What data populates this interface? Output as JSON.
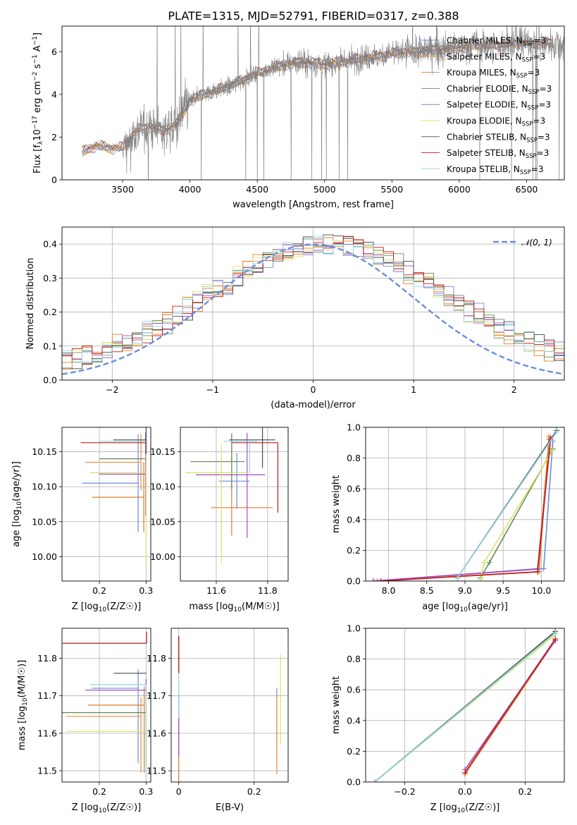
{
  "figure": {
    "title": "PLATE=1315, MJD=52791, FIBERID=0317, z=0.388"
  },
  "colors": {
    "series": [
      "#6a8fdc",
      "#f08a3c",
      "#e07b2a",
      "#5f8d5a",
      "#a64bc2",
      "#d8e36a",
      "#4a4a4a",
      "#c11b1b",
      "#8fd6e0"
    ],
    "data": "#808080",
    "normal": "#6a8fdc",
    "grid": "#b0b0b0"
  },
  "chart_data": [
    {
      "id": "spectrum",
      "type": "line",
      "xlabel": "wavelength [Angstrom, rest frame]",
      "ylabel": "Flux [f_λ 10^-17 erg cm^-2 s^-1 A^-1]",
      "xlim": [
        3050,
        6780
      ],
      "ylim": [
        0,
        7.2
      ],
      "xticks": [
        3500,
        4000,
        4500,
        5000,
        5500,
        6000,
        6500
      ],
      "yticks": [
        0,
        2,
        4,
        6
      ],
      "legend_position": "upper right",
      "legend": [
        "Chabrier MILES, N_SSP=3",
        "Salpeter MILES, N_SSP=3",
        "Kroupa MILES, N_SSP=3",
        "Chabrier ELODIE, N_SSP=3",
        "Salpeter ELODIE, N_SSP=3",
        "Kroupa ELODIE, N_SSP=3",
        "Chabrier STELIB, N_SSP=3",
        "Salpeter STELIB, N_SSP=3",
        "Kroupa STELIB, N_SSP=3"
      ],
      "continuum": {
        "x": [
          3200,
          3300,
          3400,
          3500,
          3600,
          3700,
          3800,
          3900,
          4000,
          4100,
          4200,
          4300,
          4400,
          4500,
          4600,
          4700,
          4800,
          4900,
          5000,
          5100,
          5200,
          5300,
          5400,
          5500,
          5600,
          5700,
          5800,
          5900,
          6000,
          6100,
          6200,
          6300,
          6400,
          6500,
          6600
        ],
        "y": [
          1.3,
          1.6,
          1.5,
          1.5,
          2.3,
          2.5,
          2.3,
          2.6,
          3.7,
          4.0,
          4.2,
          4.4,
          4.7,
          5.0,
          5.2,
          5.4,
          5.5,
          5.5,
          5.4,
          5.5,
          5.6,
          5.7,
          5.8,
          5.9,
          6.0,
          6.0,
          6.1,
          6.1,
          6.2,
          6.3,
          6.3,
          6.3,
          6.4,
          6.4,
          6.4
        ]
      }
    },
    {
      "id": "residuals",
      "type": "step",
      "xlabel": "(data-model)/error",
      "ylabel": "Normed distribution",
      "xlim": [
        -2.5,
        2.5
      ],
      "ylim": [
        0,
        0.45
      ],
      "xticks": [
        -2,
        -1,
        0,
        1,
        2
      ],
      "yticks": [
        0.0,
        0.1,
        0.2,
        0.3,
        0.4
      ],
      "legend": [
        "𝒩(0, 1)"
      ],
      "legend_position": "upper right",
      "bin_width": 0.1
    },
    {
      "id": "age-vs-Z",
      "type": "errorbar",
      "xlabel": "Z [log10(Z/Z☉)]",
      "ylabel": "age  [log10(age/yr)]",
      "xlim": [
        0.12,
        0.31
      ],
      "ylim": [
        9.965,
        10.185
      ],
      "xticks": [
        0.2,
        0.3
      ],
      "yticks": [
        10.0,
        10.05,
        10.1,
        10.15
      ],
      "points": [
        {
          "x": 0.283,
          "y": 10.105,
          "xerr": [
            0.12,
            0
          ],
          "yerr": [
            0.07,
            0.07
          ]
        },
        {
          "x": 0.289,
          "y": 10.135,
          "xerr": [
            0.12,
            0
          ],
          "yerr": [
            0.04,
            0.04
          ]
        },
        {
          "x": 0.295,
          "y": 10.085,
          "xerr": [
            0.11,
            0
          ],
          "yerr": [
            0.05,
            0.05
          ]
        },
        {
          "x": 0.3,
          "y": 10.14,
          "xerr": [
            0.1,
            0
          ],
          "yerr": [
            0.03,
            0.03
          ]
        },
        {
          "x": 0.299,
          "y": 10.118,
          "xerr": [
            0.1,
            0
          ],
          "yerr": [
            0.06,
            0.06
          ]
        },
        {
          "x": 0.3,
          "y": 10.12,
          "xerr": [
            0.12,
            0
          ],
          "yerr": [
            0.13,
            0.05
          ]
        },
        {
          "x": 0.3,
          "y": 10.167,
          "xerr": [
            0.07,
            0
          ],
          "yerr": [
            0.02,
            0.02
          ]
        },
        {
          "x": 0.3,
          "y": 10.163,
          "xerr": [
            0.14,
            0
          ],
          "yerr": [
            0.0,
            0.0
          ]
        },
        {
          "x": 0.299,
          "y": 10.165,
          "xerr": [
            0.1,
            0
          ],
          "yerr": [
            0.0,
            0.0
          ]
        }
      ]
    },
    {
      "id": "age-vs-mass",
      "type": "errorbar",
      "xlabel": "mass [log10(M/M☉)]",
      "ylabel": "",
      "xlim": [
        11.46,
        11.88
      ],
      "ylim": [
        9.965,
        10.185
      ],
      "xticks": [
        11.6,
        11.8
      ],
      "yticks": [
        10.0,
        10.05,
        10.1,
        10.15
      ],
      "points": [
        {
          "x": 11.68,
          "y": 10.108,
          "xerr": [
            0.07,
            0.05
          ],
          "yerr": [
            0.04,
            0.04
          ]
        },
        {
          "x": 11.66,
          "y": 10.136,
          "xerr": [
            0.16,
            0.05
          ],
          "yerr": [
            0.04,
            0.04
          ]
        },
        {
          "x": 11.66,
          "y": 10.07,
          "xerr": [
            0.08,
            0.16
          ],
          "yerr": [
            0.04,
            0.04
          ]
        },
        {
          "x": 11.66,
          "y": 10.136,
          "xerr": [
            0.16,
            0.05
          ],
          "yerr": [
            0.04,
            0.04
          ]
        },
        {
          "x": 11.72,
          "y": 10.117,
          "xerr": [
            0.2,
            0.07
          ],
          "yerr": [
            0.09,
            0.06
          ]
        },
        {
          "x": 11.62,
          "y": 10.12,
          "xerr": [
            0.14,
            0.1
          ],
          "yerr": [
            0.13,
            0.04
          ]
        },
        {
          "x": 11.78,
          "y": 10.167,
          "xerr": [
            0.13,
            0.05
          ],
          "yerr": [
            0.04,
            0.02
          ]
        },
        {
          "x": 11.84,
          "y": 10.163,
          "xerr": [
            0.18,
            0.0
          ],
          "yerr": [
            0.1,
            0.0
          ]
        },
        {
          "x": 11.73,
          "y": 10.165,
          "xerr": [
            0.1,
            0.03
          ],
          "yerr": [
            0.05,
            0.0
          ]
        }
      ]
    },
    {
      "id": "weight-vs-age",
      "type": "line",
      "xlabel": "age  [log10(age/yr)]",
      "ylabel": "mass weight",
      "xlim": [
        7.7,
        10.3
      ],
      "ylim": [
        0.0,
        1.0
      ],
      "xticks": [
        8.0,
        8.5,
        9.0,
        9.5,
        10.0
      ],
      "yticks": [
        0.0,
        0.2,
        0.4,
        0.6,
        0.8,
        1.0
      ],
      "series": [
        {
          "x": [
            7.8,
            10.03,
            10.15
          ],
          "y": [
            0.0,
            0.08,
            0.91
          ]
        },
        {
          "x": [
            7.8,
            9.95,
            10.1
          ],
          "y": [
            0.0,
            0.06,
            0.92
          ]
        },
        {
          "x": [
            7.85,
            9.97,
            10.1
          ],
          "y": [
            0.0,
            0.06,
            0.94
          ]
        },
        {
          "x": [
            9.2,
            9.32,
            10.15
          ],
          "y": [
            0.02,
            0.12,
            0.86
          ]
        },
        {
          "x": [
            7.8,
            9.95,
            10.12
          ],
          "y": [
            0.0,
            0.08,
            0.92
          ]
        },
        {
          "x": [
            9.2,
            9.25,
            10.15
          ],
          "y": [
            0.01,
            0.12,
            0.85
          ]
        },
        {
          "x": [
            8.9,
            10.2
          ],
          "y": [
            0.02,
            0.98
          ]
        },
        {
          "x": [
            7.9,
            9.95,
            10.12
          ],
          "y": [
            0.0,
            0.06,
            0.93
          ]
        },
        {
          "x": [
            8.9,
            10.2
          ],
          "y": [
            0.02,
            0.97
          ]
        }
      ]
    },
    {
      "id": "mass-vs-Z",
      "type": "errorbar",
      "xlabel": "Z [log10(Z/Z☉)]",
      "ylabel": "mass [log10(M/M☉)]",
      "xlim": [
        0.12,
        0.31
      ],
      "ylim": [
        11.47,
        11.88
      ],
      "xticks": [
        0.2,
        0.3
      ],
      "yticks": [
        11.5,
        11.6,
        11.7,
        11.8
      ],
      "points": [
        {
          "x": 0.283,
          "y": 11.72,
          "xerr": [
            0.1,
            0
          ],
          "yerr": [
            0.2,
            0.05
          ]
        },
        {
          "x": 0.289,
          "y": 11.645,
          "xerr": [
            0.16,
            0
          ],
          "yerr": [
            0.15,
            0.05
          ]
        },
        {
          "x": 0.296,
          "y": 11.675,
          "xerr": [
            0.12,
            0
          ],
          "yerr": [
            0.18,
            0.05
          ]
        },
        {
          "x": 0.3,
          "y": 11.655,
          "xerr": [
            0.18,
            0
          ],
          "yerr": [
            0.0,
            0.0
          ]
        },
        {
          "x": 0.3,
          "y": 11.715,
          "xerr": [
            0.13,
            0
          ],
          "yerr": [
            0.2,
            0.03
          ]
        },
        {
          "x": 0.3,
          "y": 11.605,
          "xerr": [
            0.17,
            0
          ],
          "yerr": [
            0.1,
            0.07
          ]
        },
        {
          "x": 0.301,
          "y": 11.76,
          "xerr": [
            0.07,
            0
          ],
          "yerr": [
            0.0,
            0.0
          ]
        },
        {
          "x": 0.301,
          "y": 11.84,
          "xerr": [
            0.18,
            0
          ],
          "yerr": [
            0.0,
            0.03
          ]
        },
        {
          "x": 0.3,
          "y": 11.73,
          "xerr": [
            0.12,
            0
          ],
          "yerr": [
            0.25,
            0.0
          ]
        }
      ]
    },
    {
      "id": "mass-vs-ebv",
      "type": "errorbar",
      "xlabel": "E(B-V)",
      "ylabel": "",
      "xlim": [
        -0.02,
        0.29
      ],
      "ylim": [
        11.47,
        11.88
      ],
      "xticks": [
        0.0,
        0.2
      ],
      "yticks": [
        11.5,
        11.6,
        11.7,
        11.8
      ],
      "points": [
        {
          "x": 0.26,
          "y": 11.66,
          "xerr": [
            0,
            0
          ],
          "yerr": [
            0.14,
            0.06
          ]
        },
        {
          "x": 0.26,
          "y": 11.56,
          "xerr": [
            0,
            0
          ],
          "yerr": [
            0.07,
            0.14
          ]
        },
        {
          "x": 0.0,
          "y": 11.55,
          "xerr": [
            0,
            0
          ],
          "yerr": [
            0.08,
            0.1
          ]
        },
        {
          "x": 0.0,
          "y": 11.8,
          "xerr": [
            0,
            0
          ],
          "yerr": [
            0.04,
            0.05
          ]
        },
        {
          "x": 0.0,
          "y": 11.64,
          "xerr": [
            0,
            0
          ],
          "yerr": [
            0.1,
            0.06
          ]
        },
        {
          "x": 0.27,
          "y": 11.7,
          "xerr": [
            0,
            0
          ],
          "yerr": [
            0.13,
            0.11
          ]
        },
        {
          "x": 0.0,
          "y": 11.8,
          "xerr": [
            0,
            0
          ],
          "yerr": [
            0.03,
            0.06
          ]
        },
        {
          "x": 0.0,
          "y": 11.8,
          "xerr": [
            0,
            0
          ],
          "yerr": [
            0.04,
            0.06
          ]
        },
        {
          "x": 0.0,
          "y": 11.7,
          "xerr": [
            0,
            0
          ],
          "yerr": [
            0.06,
            0.06
          ]
        }
      ]
    },
    {
      "id": "weight-vs-Z",
      "type": "line",
      "xlabel": "Z [log10(Z/Z☉)]",
      "ylabel": "mass weight",
      "xlim": [
        -0.33,
        0.33
      ],
      "ylim": [
        0.0,
        1.0
      ],
      "xticks": [
        -0.2,
        0.0,
        0.2
      ],
      "yticks": [
        0.0,
        0.2,
        0.4,
        0.6,
        0.8,
        1.0
      ],
      "series": [
        {
          "x": [
            0.0,
            0.3
          ],
          "y": [
            0.08,
            0.93
          ]
        },
        {
          "x": [
            0.0,
            0.3
          ],
          "y": [
            0.05,
            0.92
          ]
        },
        {
          "x": [
            0.0,
            0.3
          ],
          "y": [
            0.06,
            0.93
          ]
        },
        {
          "x": [
            -0.3,
            0.3
          ],
          "y": [
            0.0,
            0.97
          ]
        },
        {
          "x": [
            0.0,
            0.3
          ],
          "y": [
            0.08,
            0.92
          ]
        },
        {
          "x": [
            -0.3,
            0.3
          ],
          "y": [
            0.0,
            0.96
          ]
        },
        {
          "x": [
            -0.3,
            0.3
          ],
          "y": [
            0.0,
            0.98
          ]
        },
        {
          "x": [
            0.0,
            0.3
          ],
          "y": [
            0.06,
            0.93
          ]
        },
        {
          "x": [
            -0.3,
            0.3
          ],
          "y": [
            0.0,
            0.97
          ]
        }
      ]
    }
  ]
}
